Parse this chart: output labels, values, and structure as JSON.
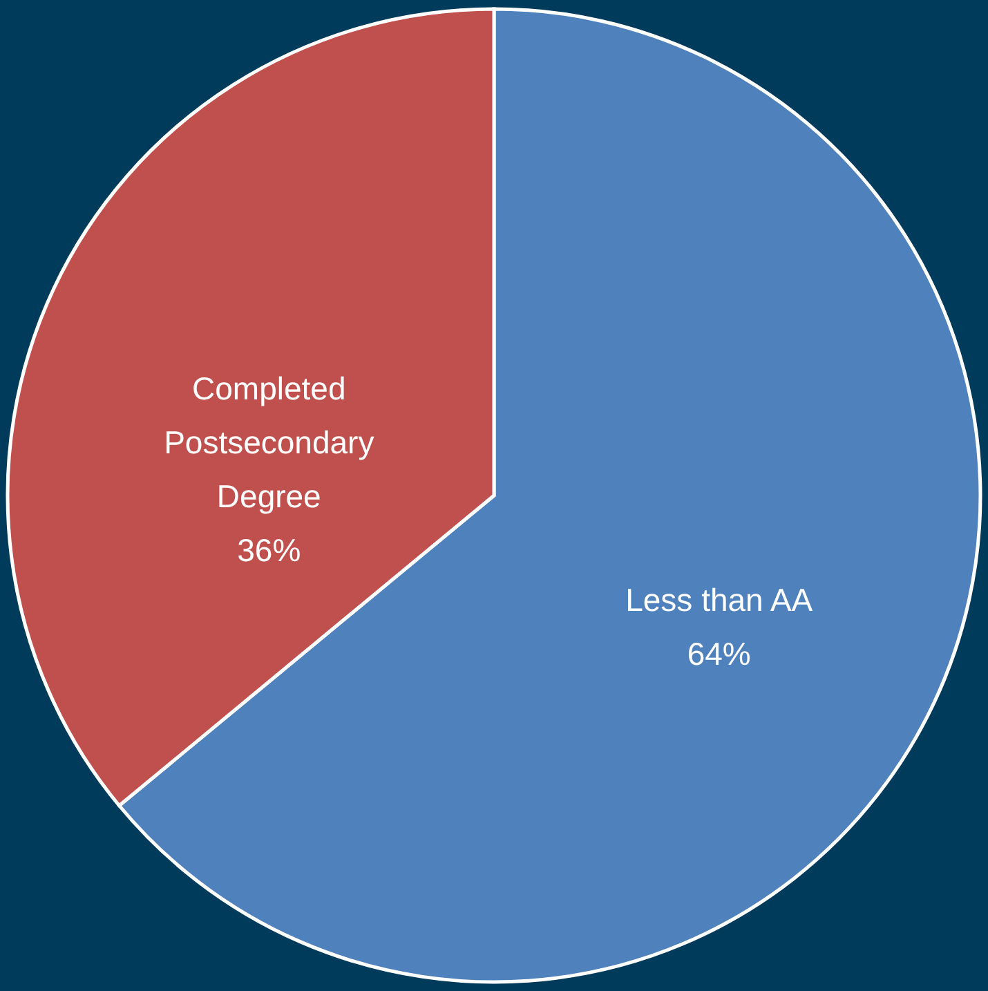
{
  "chart_data": {
    "type": "pie",
    "categories": [
      "Less than AA",
      "Completed Postsecondary Degree"
    ],
    "values": [
      64,
      36
    ],
    "colors": [
      "#4f81bd",
      "#c0504d"
    ],
    "value_labels": [
      "64%",
      "36%"
    ]
  }
}
